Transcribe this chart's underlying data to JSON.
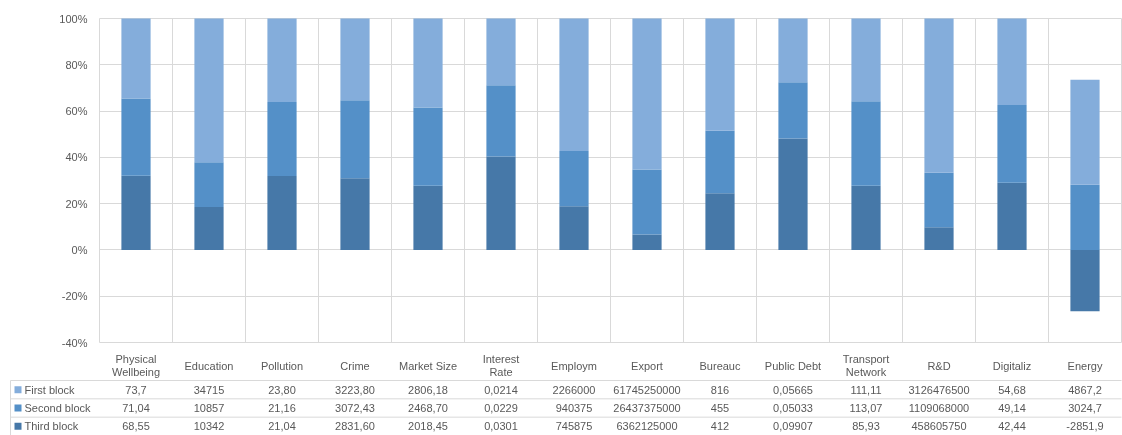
{
  "chart_data": {
    "type": "bar",
    "stacked": true,
    "categories": [
      "Physical Wellbeing",
      "Education",
      "Pollution",
      "Crime",
      "Market Size",
      "Interest Rate",
      "Employm",
      "Export",
      "Bureauc",
      "Public Debt",
      "Transport Network",
      "R&D",
      "Digitaliz",
      "Energy"
    ],
    "series": [
      {
        "name": "Third block",
        "color": "#4678a8",
        "values": [
          32.1,
          18.5,
          31.9,
          31.0,
          27.7,
          40.4,
          18.9,
          6.7,
          24.5,
          48.1,
          27.7,
          9.8,
          29.0,
          -26.5
        ]
      },
      {
        "name": "Second block",
        "color": "#5490c8",
        "values": [
          33.3,
          19.4,
          32.0,
          33.7,
          33.8,
          30.8,
          23.8,
          28.0,
          27.0,
          24.4,
          36.5,
          23.6,
          33.6,
          28.2
        ]
      },
      {
        "name": "First block",
        "color": "#84addb",
        "values": [
          34.6,
          62.1,
          36.1,
          35.3,
          38.5,
          28.8,
          57.3,
          65.3,
          48.5,
          27.5,
          35.8,
          66.6,
          37.4,
          45.3
        ]
      }
    ],
    "annotations": [
      "73,7",
      "34715",
      "23,80",
      "3223,80",
      "2806,18",
      "0,0214",
      "2266000",
      "61745250000",
      "816",
      "0,05665",
      "111,11",
      "3126476500",
      "54,68",
      "4867,2",
      "71,04",
      "10857",
      "21,16",
      "3072,43",
      "2468,70",
      "0,0229",
      "940375",
      "26437375000",
      "455",
      "0,05033",
      "113,07",
      "1109068000",
      "49,14",
      "3024,7",
      "68,55",
      "10342",
      "21,04",
      "2831,60",
      "2018,45",
      "0,0301",
      "745875",
      "6362125000",
      "412",
      "0,09907",
      "85,93",
      "458605750",
      "42,44",
      "-2851,9"
    ],
    "ylim": [
      -40,
      100
    ],
    "yticks": [
      {
        "value": -40,
        "label": "-40%"
      },
      {
        "value": -20,
        "label": "-20%"
      },
      {
        "value": 0,
        "label": "0%"
      },
      {
        "value": 20,
        "label": "20%"
      },
      {
        "value": 40,
        "label": "40%"
      },
      {
        "value": 60,
        "label": "60%"
      },
      {
        "value": 80,
        "label": "80%"
      },
      {
        "value": 100,
        "label": "100%"
      }
    ],
    "grid": true,
    "legend": "bottom"
  }
}
